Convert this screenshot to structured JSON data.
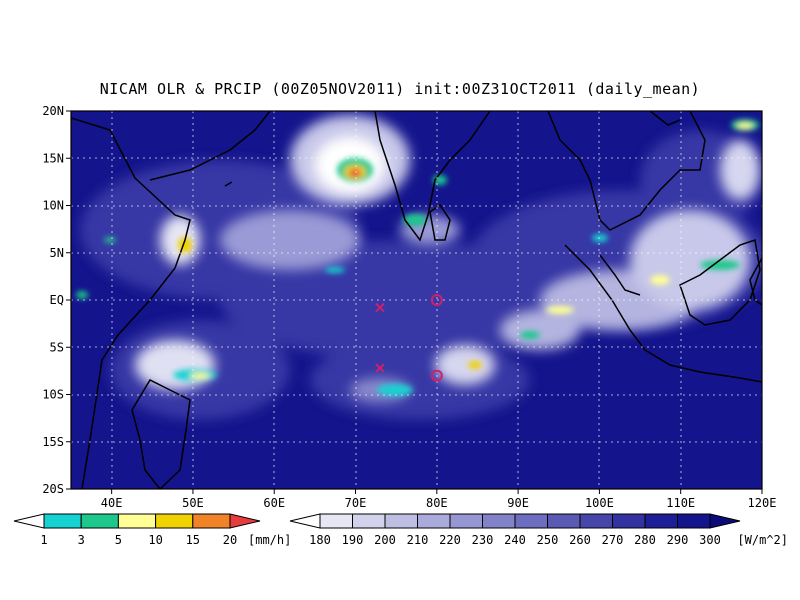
{
  "title": "NICAM OLR & PRCIP (00Z05NOV2011) init:00Z31OCT2011 (daily_mean)",
  "map": {
    "lon_range": [
      35,
      120
    ],
    "lat_range": [
      -20,
      20
    ],
    "lat_ticks": [
      {
        "value": 20,
        "label": "20N"
      },
      {
        "value": 15,
        "label": "15N"
      },
      {
        "value": 10,
        "label": "10N"
      },
      {
        "value": 5,
        "label": "5N"
      },
      {
        "value": 0,
        "label": "EQ"
      },
      {
        "value": -5,
        "label": "5S"
      },
      {
        "value": -10,
        "label": "10S"
      },
      {
        "value": -15,
        "label": "15S"
      },
      {
        "value": -20,
        "label": "20S"
      }
    ],
    "lon_ticks": [
      {
        "value": 40,
        "label": "40E"
      },
      {
        "value": 50,
        "label": "50E"
      },
      {
        "value": 60,
        "label": "60E"
      },
      {
        "value": 70,
        "label": "70E"
      },
      {
        "value": 80,
        "label": "80E"
      },
      {
        "value": 90,
        "label": "90E"
      },
      {
        "value": 100,
        "label": "100E"
      },
      {
        "value": 110,
        "label": "110E"
      },
      {
        "value": 120,
        "label": "120E"
      }
    ],
    "grid": true,
    "markers": [
      {
        "type": "x",
        "lon": 73,
        "lat": -0.8,
        "color": "#d0206a"
      },
      {
        "type": "circle",
        "lon": 80,
        "lat": 0,
        "color": "#d0206a"
      },
      {
        "type": "x",
        "lon": 73,
        "lat": -7.2,
        "color": "#d0206a"
      },
      {
        "type": "circle",
        "lon": 80,
        "lat": -8,
        "color": "#d0206a"
      }
    ]
  },
  "precip_legend": {
    "unit": "[mm/h]",
    "levels": [
      "1",
      "3",
      "5",
      "10",
      "15",
      "20"
    ],
    "colors": [
      "#ffffff",
      "#14d2d2",
      "#1ec88c",
      "#ffff96",
      "#f0d200",
      "#f08228",
      "#e63c3c"
    ]
  },
  "olr_legend": {
    "unit": "[W/m^2]",
    "levels": [
      "180",
      "190",
      "200",
      "210",
      "220",
      "230",
      "240",
      "250",
      "260",
      "270",
      "280",
      "290",
      "300"
    ],
    "colors": [
      "#ffffff",
      "#e6e6f5",
      "#d2d2ec",
      "#bebee3",
      "#aaaadb",
      "#9696d2",
      "#8282c8",
      "#6e6ec0",
      "#5a5ab4",
      "#4646aa",
      "#3232a0",
      "#1e1e96",
      "#14148c",
      "#0a0a78"
    ]
  }
}
